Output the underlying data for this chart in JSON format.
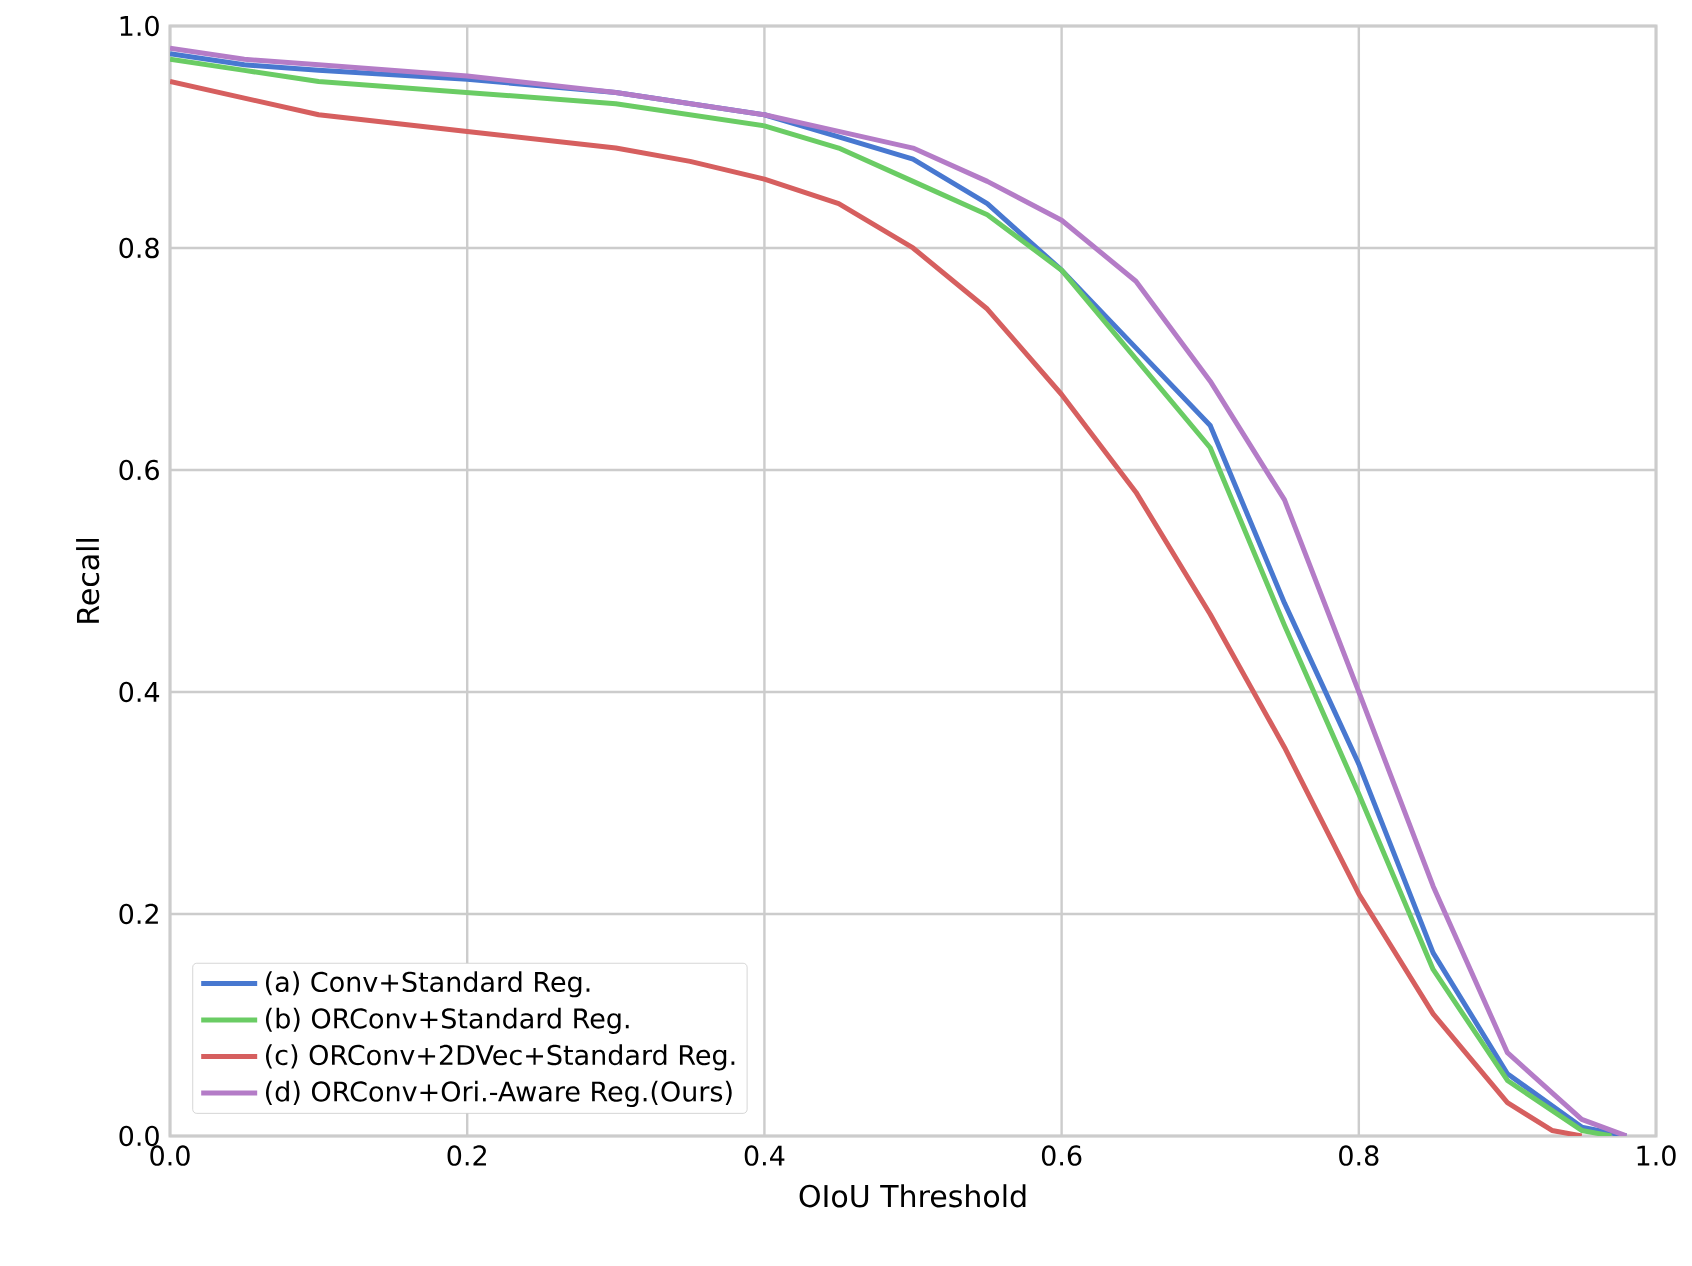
{
  "chart_data": {
    "type": "line",
    "xlabel": "OIoU Threshold",
    "ylabel": "Recall",
    "xlim": [
      0,
      1
    ],
    "ylim": [
      0,
      1
    ],
    "xticks": [
      {
        "value": 0,
        "label": "0.0"
      },
      0.2,
      0.4,
      0.6,
      0.8,
      {
        "value": 1,
        "label": "1.0"
      }
    ],
    "yticks": [
      {
        "value": 0,
        "label": "0.0"
      },
      0.2,
      0.4,
      0.6,
      0.8,
      {
        "value": 1,
        "label": "1.0"
      }
    ],
    "grid": true,
    "legend": "bottom left",
    "marker": "none",
    "line_style": "solid",
    "series": [
      {
        "name": "(a) Conv+Standard Reg.",
        "color": "#4878d0",
        "x": [
          0,
          0.05,
          0.1,
          0.2,
          0.3,
          0.4,
          0.45,
          0.5,
          0.55,
          0.6,
          0.65,
          0.7,
          0.75,
          0.8,
          0.85,
          0.9,
          0.95,
          0.98
        ],
        "values": [
          0.975,
          0.965,
          0.96,
          0.952,
          0.94,
          0.92,
          0.9,
          0.88,
          0.84,
          0.78,
          0.71,
          0.64,
          0.48,
          0.335,
          0.165,
          0.056,
          0.008,
          0
        ]
      },
      {
        "name": "(b) ORConv+Standard Reg.",
        "color": "#6acc64",
        "x": [
          0,
          0.05,
          0.1,
          0.2,
          0.3,
          0.4,
          0.45,
          0.5,
          0.55,
          0.6,
          0.65,
          0.7,
          0.75,
          0.8,
          0.85,
          0.9,
          0.95,
          0.97
        ],
        "values": [
          0.97,
          0.96,
          0.95,
          0.94,
          0.93,
          0.91,
          0.89,
          0.86,
          0.83,
          0.78,
          0.7,
          0.62,
          0.46,
          0.308,
          0.15,
          0.05,
          0.005,
          0
        ]
      },
      {
        "name": "(c) ORConv+2DVec+Standard Reg.",
        "color": "#d65f5f",
        "x": [
          0,
          0.05,
          0.1,
          0.2,
          0.3,
          0.35,
          0.4,
          0.45,
          0.5,
          0.55,
          0.6,
          0.65,
          0.7,
          0.75,
          0.8,
          0.85,
          0.9,
          0.93,
          0.95
        ],
        "values": [
          0.95,
          0.935,
          0.92,
          0.905,
          0.89,
          0.878,
          0.862,
          0.84,
          0.8,
          0.745,
          0.668,
          0.58,
          0.47,
          0.35,
          0.218,
          0.11,
          0.03,
          0.005,
          0
        ]
      },
      {
        "name": "(d) ORConv+Ori.-Aware Reg.(Ours)",
        "color": "#b47cc7",
        "x": [
          0,
          0.05,
          0.1,
          0.2,
          0.3,
          0.4,
          0.45,
          0.5,
          0.55,
          0.6,
          0.65,
          0.7,
          0.75,
          0.8,
          0.85,
          0.9,
          0.95,
          0.98
        ],
        "values": [
          0.98,
          0.97,
          0.965,
          0.955,
          0.94,
          0.92,
          0.905,
          0.89,
          0.86,
          0.825,
          0.77,
          0.68,
          0.573,
          0.4,
          0.225,
          0.075,
          0.015,
          0
        ]
      }
    ]
  }
}
